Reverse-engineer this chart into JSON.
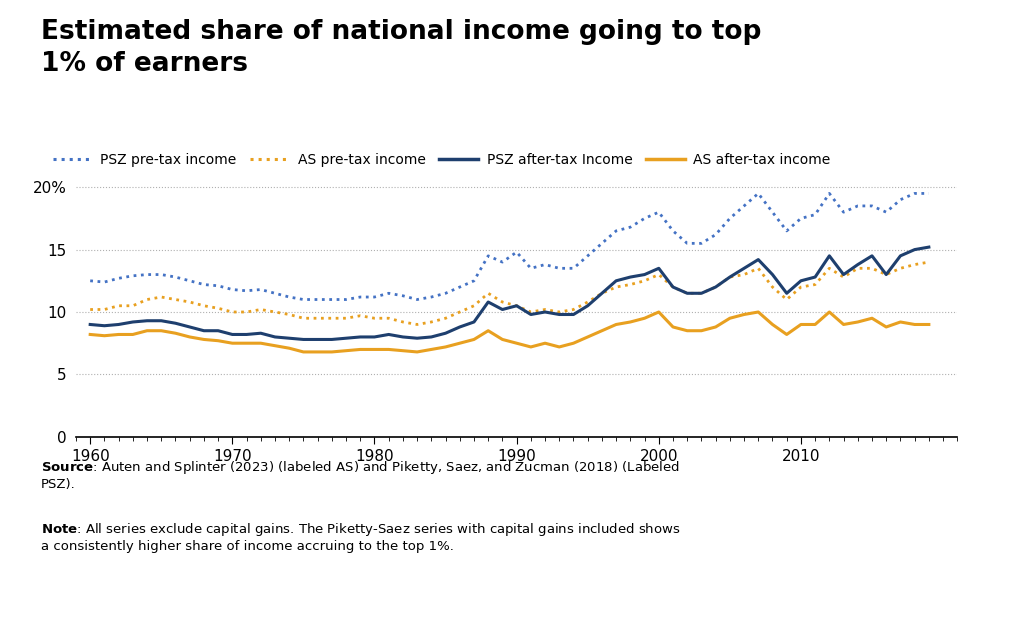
{
  "title": "Estimated share of national income going to top\n1% of earners",
  "blue_solid": "#1e3f6e",
  "orange_solid": "#e8a020",
  "blue_dotted": "#4472c4",
  "orange_dotted": "#e8a020",
  "years": [
    1960,
    1961,
    1962,
    1963,
    1964,
    1965,
    1966,
    1967,
    1968,
    1969,
    1970,
    1971,
    1972,
    1973,
    1974,
    1975,
    1976,
    1977,
    1978,
    1979,
    1980,
    1981,
    1982,
    1983,
    1984,
    1985,
    1986,
    1987,
    1988,
    1989,
    1990,
    1991,
    1992,
    1993,
    1994,
    1995,
    1996,
    1997,
    1998,
    1999,
    2000,
    2001,
    2002,
    2003,
    2004,
    2005,
    2006,
    2007,
    2008,
    2009,
    2010,
    2011,
    2012,
    2013,
    2014,
    2015,
    2016,
    2017,
    2018,
    2019
  ],
  "psz_pretax": [
    12.5,
    12.4,
    12.7,
    12.9,
    13.0,
    13.0,
    12.8,
    12.5,
    12.2,
    12.1,
    11.8,
    11.7,
    11.8,
    11.5,
    11.2,
    11.0,
    11.0,
    11.0,
    11.0,
    11.2,
    11.2,
    11.5,
    11.3,
    11.0,
    11.2,
    11.5,
    12.0,
    12.5,
    14.5,
    14.0,
    14.8,
    13.5,
    13.8,
    13.5,
    13.5,
    14.5,
    15.5,
    16.5,
    16.8,
    17.5,
    18.0,
    16.5,
    15.5,
    15.5,
    16.2,
    17.5,
    18.5,
    19.5,
    18.0,
    16.5,
    17.5,
    17.8,
    19.5,
    18.0,
    18.5,
    18.5,
    18.0,
    19.0,
    19.5,
    19.5
  ],
  "as_pretax": [
    10.2,
    10.2,
    10.5,
    10.5,
    11.0,
    11.2,
    11.0,
    10.8,
    10.5,
    10.3,
    10.0,
    10.0,
    10.2,
    10.0,
    9.8,
    9.5,
    9.5,
    9.5,
    9.5,
    9.7,
    9.5,
    9.5,
    9.2,
    9.0,
    9.2,
    9.5,
    10.0,
    10.5,
    11.5,
    10.8,
    10.5,
    10.0,
    10.2,
    10.0,
    10.2,
    10.8,
    11.5,
    12.0,
    12.2,
    12.5,
    13.0,
    12.0,
    11.5,
    11.5,
    12.0,
    12.8,
    13.0,
    13.5,
    12.0,
    11.0,
    12.0,
    12.2,
    13.5,
    12.8,
    13.5,
    13.5,
    13.0,
    13.5,
    13.8,
    14.0
  ],
  "psz_aftertax": [
    9.0,
    8.9,
    9.0,
    9.2,
    9.3,
    9.3,
    9.1,
    8.8,
    8.5,
    8.5,
    8.2,
    8.2,
    8.3,
    8.0,
    7.9,
    7.8,
    7.8,
    7.8,
    7.9,
    8.0,
    8.0,
    8.2,
    8.0,
    7.9,
    8.0,
    8.3,
    8.8,
    9.2,
    10.8,
    10.2,
    10.5,
    9.8,
    10.0,
    9.8,
    9.8,
    10.5,
    11.5,
    12.5,
    12.8,
    13.0,
    13.5,
    12.0,
    11.5,
    11.5,
    12.0,
    12.8,
    13.5,
    14.2,
    13.0,
    11.5,
    12.5,
    12.8,
    14.5,
    13.0,
    13.8,
    14.5,
    13.0,
    14.5,
    15.0,
    15.2
  ],
  "as_aftertax": [
    8.2,
    8.1,
    8.2,
    8.2,
    8.5,
    8.5,
    8.3,
    8.0,
    7.8,
    7.7,
    7.5,
    7.5,
    7.5,
    7.3,
    7.1,
    6.8,
    6.8,
    6.8,
    6.9,
    7.0,
    7.0,
    7.0,
    6.9,
    6.8,
    7.0,
    7.2,
    7.5,
    7.8,
    8.5,
    7.8,
    7.5,
    7.2,
    7.5,
    7.2,
    7.5,
    8.0,
    8.5,
    9.0,
    9.2,
    9.5,
    10.0,
    8.8,
    8.5,
    8.5,
    8.8,
    9.5,
    9.8,
    10.0,
    9.0,
    8.2,
    9.0,
    9.0,
    10.0,
    9.0,
    9.2,
    9.5,
    8.8,
    9.2,
    9.0,
    9.0
  ],
  "ylim": [
    0,
    22
  ],
  "yticks": [
    0,
    5,
    10,
    15,
    20
  ],
  "ytick_labels": [
    "0",
    "5",
    "10",
    "15",
    "20%"
  ],
  "xlim": [
    1959,
    2021
  ],
  "legend_labels": [
    "PSZ pre-tax income",
    "AS pre-tax income",
    "PSZ after-tax Income",
    "AS after-tax income"
  ],
  "background_color": "#ffffff",
  "grid_color": "#b0b0b0",
  "tpc_blue": "#2e8bc0",
  "tpc_bg": "#1a6ea8"
}
